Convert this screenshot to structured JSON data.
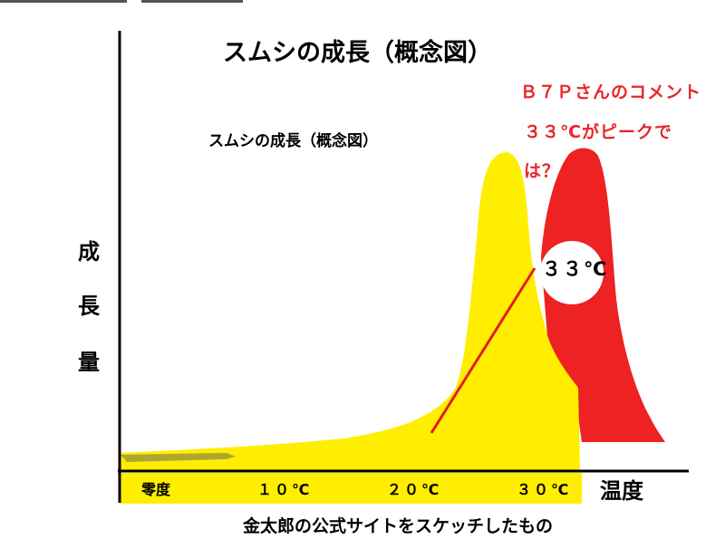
{
  "title": "スムシの成長（概念図）",
  "subtitle": "スムシの成長（概念図）",
  "comment": {
    "line1": "Ｂ７Ｐさんのコメント",
    "line2": "３３℃がピークで",
    "line3": "は？"
  },
  "peak_label": "３３℃",
  "y_axis_label": [
    "成",
    "長",
    "量"
  ],
  "x_axis_label": "温度",
  "x_ticks": [
    "零度",
    "１０℃",
    "２０℃",
    "３０℃"
  ],
  "caption": "金太郎の公式サイトをスケッチしたもの",
  "colors": {
    "yellow_curve": "#ffee00",
    "red_curve": "#ee2222",
    "comment_text": "#e8262a"
  }
}
